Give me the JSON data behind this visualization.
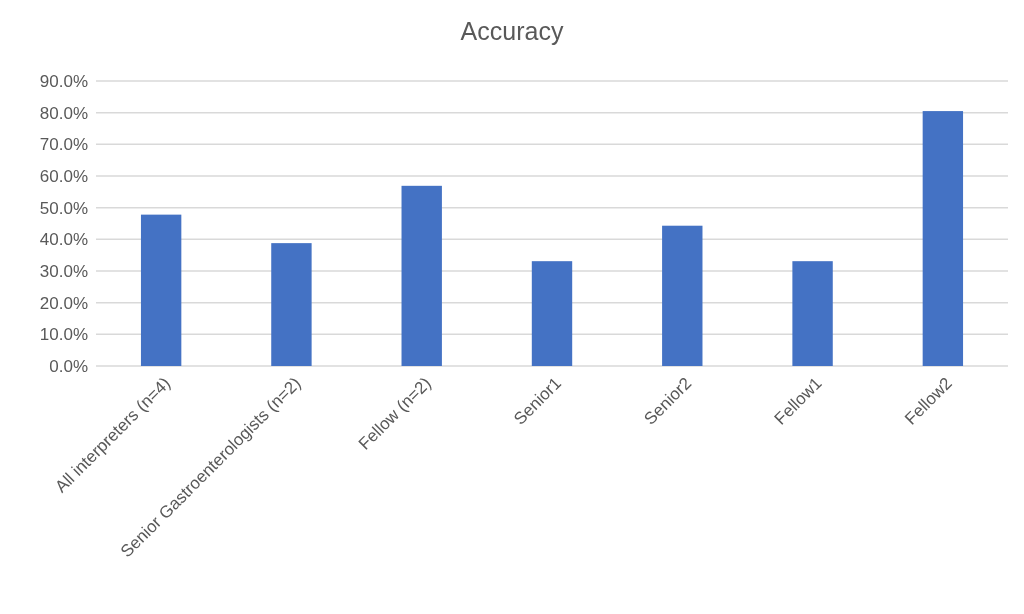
{
  "chart_data": {
    "type": "bar",
    "title": "Accuracy",
    "categories": [
      "All interpreters (n=4)",
      "Senior Gastroenterologists (n=2)",
      "Fellow (n=2)",
      "Senior1",
      "Senior2",
      "Fellow1",
      "Fellow2"
    ],
    "values": [
      47.8,
      38.8,
      56.9,
      33.1,
      44.3,
      33.1,
      80.5
    ],
    "color": "#4472c4",
    "ylim": [
      0,
      90
    ],
    "yticks": [
      {
        "value": 0,
        "label": "0.0%"
      },
      {
        "value": 10,
        "label": "10.0%"
      },
      {
        "value": 20,
        "label": "20.0%"
      },
      {
        "value": 30,
        "label": "30.0%"
      },
      {
        "value": 40,
        "label": "40.0%"
      },
      {
        "value": 50,
        "label": "50.0%"
      },
      {
        "value": 60,
        "label": "60.0%"
      },
      {
        "value": 70,
        "label": "70.0%"
      },
      {
        "value": 80,
        "label": "80.0%"
      },
      {
        "value": 90,
        "label": "90.0%"
      }
    ],
    "grid": "y"
  }
}
